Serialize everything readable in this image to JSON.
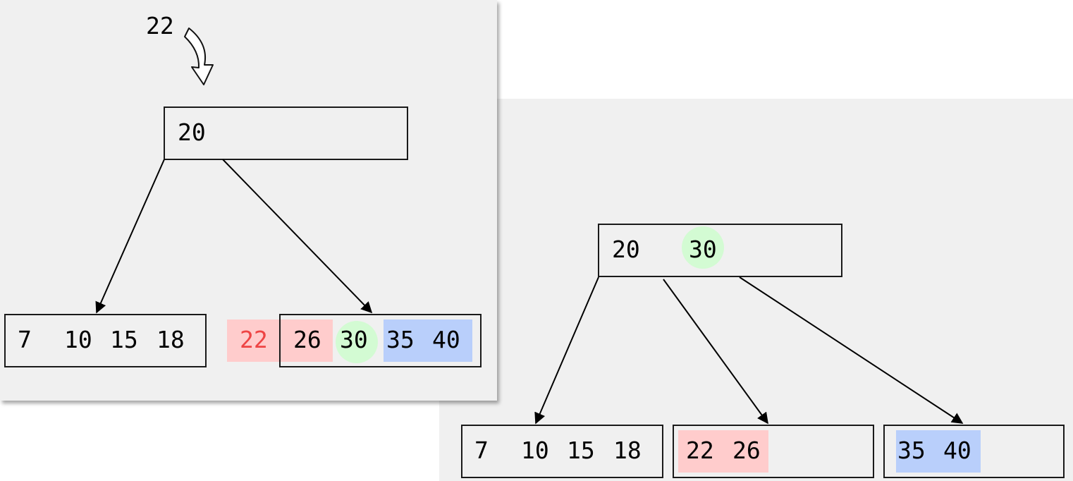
{
  "insert_key": "22",
  "before": {
    "root": {
      "keys": [
        "20"
      ]
    },
    "left_leaf": {
      "keys": [
        "7",
        "10",
        "15",
        "18"
      ]
    },
    "right_leaf": {
      "overflow_key": "22",
      "keys": [
        "26",
        "30",
        "35",
        "40"
      ]
    }
  },
  "after": {
    "root": {
      "keys": [
        "20",
        "30"
      ]
    },
    "leaf_1": {
      "keys": [
        "7",
        "10",
        "15",
        "18"
      ]
    },
    "leaf_2": {
      "keys": [
        "22",
        "26"
      ]
    },
    "leaf_3": {
      "keys": [
        "35",
        "40"
      ]
    }
  },
  "colors": {
    "panel_background": "#f0f0f0",
    "left_half_highlight": "#ffcccc",
    "promoted_key_highlight": "#d3fbd3",
    "right_half_highlight": "#b9cffb",
    "new_key_text": "#ee4444"
  },
  "icons": {
    "insert_arrow": "curved-down-arrow-icon"
  }
}
